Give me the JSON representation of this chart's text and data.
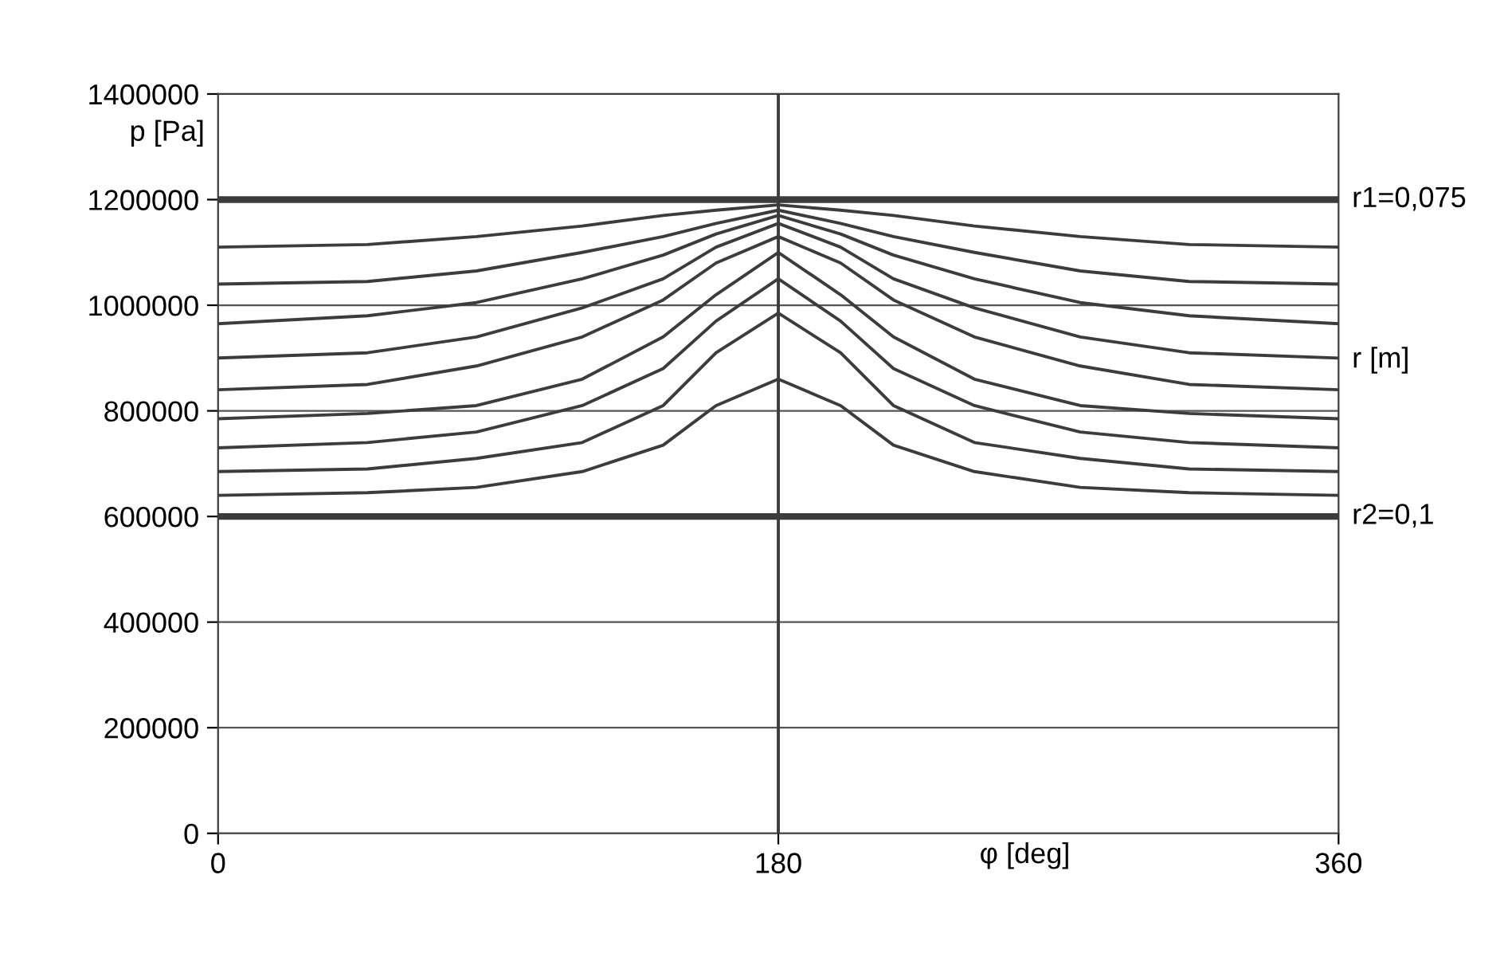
{
  "chart_data": {
    "type": "line",
    "xlabel": "φ [deg]",
    "ylabel": "p [Pa]",
    "annotations": [
      "r [m]"
    ],
    "x": [
      0,
      48,
      83,
      117,
      143,
      160,
      180,
      200,
      217,
      243,
      277,
      312,
      360
    ],
    "series": [
      {
        "name": "r1=0,075",
        "color": "#3c3c3c",
        "values": [
          1200000,
          1200000,
          1200000,
          1200000,
          1200000,
          1200000,
          1200000,
          1200000,
          1200000,
          1200000,
          1200000,
          1200000,
          1200000
        ]
      },
      {
        "color": "#3c3c3c",
        "values": [
          1110000,
          1115000,
          1130000,
          1150000,
          1170000,
          1180000,
          1190000,
          1180000,
          1170000,
          1150000,
          1130000,
          1115000,
          1110000
        ]
      },
      {
        "color": "#3c3c3c",
        "values": [
          1040000,
          1045000,
          1065000,
          1100000,
          1130000,
          1155000,
          1180000,
          1155000,
          1130000,
          1100000,
          1065000,
          1045000,
          1040000
        ]
      },
      {
        "color": "#3c3c3c",
        "values": [
          965000,
          980000,
          1005000,
          1050000,
          1095000,
          1135000,
          1170000,
          1135000,
          1095000,
          1050000,
          1005000,
          980000,
          965000
        ]
      },
      {
        "color": "#3c3c3c",
        "values": [
          900000,
          910000,
          940000,
          995000,
          1050000,
          1110000,
          1155000,
          1110000,
          1050000,
          995000,
          940000,
          910000,
          900000
        ]
      },
      {
        "color": "#3c3c3c",
        "values": [
          840000,
          850000,
          885000,
          940000,
          1010000,
          1080000,
          1130000,
          1080000,
          1010000,
          940000,
          885000,
          850000,
          840000
        ]
      },
      {
        "color": "#3c3c3c",
        "values": [
          785000,
          795000,
          810000,
          860000,
          940000,
          1020000,
          1100000,
          1020000,
          940000,
          860000,
          810000,
          795000,
          785000
        ]
      },
      {
        "color": "#3c3c3c",
        "values": [
          730000,
          740000,
          760000,
          810000,
          880000,
          970000,
          1050000,
          970000,
          880000,
          810000,
          760000,
          740000,
          730000
        ]
      },
      {
        "color": "#3c3c3c",
        "values": [
          685000,
          690000,
          710000,
          740000,
          810000,
          910000,
          985000,
          910000,
          810000,
          740000,
          710000,
          690000,
          685000
        ]
      },
      {
        "color": "#3c3c3c",
        "values": [
          640000,
          645000,
          655000,
          685000,
          735000,
          810000,
          860000,
          810000,
          735000,
          685000,
          655000,
          645000,
          640000
        ]
      },
      {
        "name": "r2=0,1",
        "color": "#3c3c3c",
        "values": [
          600000,
          600000,
          600000,
          600000,
          600000,
          600000,
          600000,
          600000,
          600000,
          600000,
          600000,
          600000,
          600000
        ]
      }
    ],
    "xlim": [
      0,
      360
    ],
    "xticks": [
      0,
      180,
      360
    ],
    "ylim": [
      0,
      1400000
    ],
    "yticks": [
      0,
      200000,
      400000,
      600000,
      800000,
      1000000,
      1200000,
      1400000
    ],
    "ref_lines": [
      {
        "axis": "x",
        "value": 180,
        "color": "#3c3c3c"
      }
    ],
    "grid": "y",
    "legend": false,
    "marker": "none",
    "line_style": "solid"
  }
}
